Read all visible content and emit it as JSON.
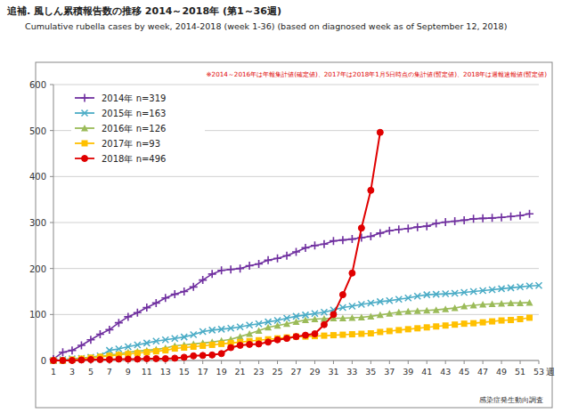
{
  "chart_data": {
    "type": "line",
    "title": "追補. 風しん累積報告数の推移  2014～2018年 (第1～36週)",
    "subtitle": "Cumulative rubella cases by week, 2014-2018 (week 1-36)  (based on diagnosed week as of September 12, 2018)",
    "x_label": "週",
    "annotations": [
      "※2014～2016年は年報集計値(確定値)、2017年は2018年1月5日時点の集計値(暫定値)、2018年は週報速報値(暫定値)",
      "感染症発生動向調査"
    ],
    "x": [
      1,
      2,
      3,
      4,
      5,
      6,
      7,
      8,
      9,
      10,
      11,
      12,
      13,
      14,
      15,
      16,
      17,
      18,
      19,
      20,
      21,
      22,
      23,
      24,
      25,
      26,
      27,
      28,
      29,
      30,
      31,
      32,
      33,
      34,
      35,
      36,
      37,
      38,
      39,
      40,
      41,
      42,
      43,
      44,
      45,
      46,
      47,
      48,
      49,
      50,
      51,
      52,
      53
    ],
    "xlim": [
      1,
      53
    ],
    "xticks": [
      1,
      3,
      5,
      7,
      9,
      11,
      13,
      15,
      17,
      19,
      21,
      23,
      25,
      27,
      29,
      31,
      33,
      35,
      37,
      39,
      41,
      43,
      45,
      47,
      49,
      51,
      53
    ],
    "ylim": [
      0,
      600
    ],
    "yticks": [
      0,
      100,
      200,
      300,
      400,
      500,
      600
    ],
    "grid": true,
    "legend": "upper left",
    "series": [
      {
        "name": "2014年 n=319",
        "color": "#7030a0",
        "marker": "plus",
        "values": [
          3,
          18,
          22,
          33,
          45,
          57,
          67,
          82,
          95,
          104,
          115,
          125,
          136,
          144,
          150,
          160,
          175,
          188,
          196,
          198,
          200,
          206,
          210,
          218,
          222,
          228,
          236,
          245,
          250,
          253,
          260,
          262,
          264,
          267,
          270,
          277,
          282,
          285,
          287,
          290,
          292,
          298,
          301,
          303,
          305,
          308,
          309,
          310,
          311,
          313,
          315,
          319,
          null
        ]
      },
      {
        "name": "2015年 n=163",
        "color": "#4bacc6",
        "marker": "x",
        "values": [
          0,
          2,
          4,
          5,
          7,
          10,
          22,
          25,
          30,
          34,
          38,
          42,
          45,
          48,
          51,
          56,
          63,
          66,
          68,
          70,
          73,
          77,
          80,
          84,
          87,
          92,
          96,
          99,
          102,
          105,
          110,
          115,
          118,
          122,
          125,
          128,
          130,
          133,
          136,
          140,
          143,
          144,
          145,
          146,
          148,
          150,
          152,
          154,
          156,
          158,
          160,
          162,
          163
        ]
      },
      {
        "name": "2016年 n=126",
        "color": "#9bbb59",
        "marker": "triangle",
        "values": [
          0,
          0,
          2,
          4,
          6,
          8,
          12,
          14,
          18,
          20,
          22,
          24,
          27,
          32,
          34,
          36,
          38,
          40,
          43,
          46,
          52,
          58,
          65,
          72,
          76,
          80,
          84,
          88,
          90,
          91,
          92,
          92,
          93,
          94,
          96,
          99,
          102,
          105,
          107,
          108,
          109,
          110,
          112,
          114,
          118,
          120,
          122,
          123,
          124,
          125,
          125,
          126,
          null
        ]
      },
      {
        "name": "2017年 n=93",
        "color": "#ffc000",
        "marker": "square",
        "values": [
          0,
          0,
          2,
          4,
          6,
          8,
          10,
          12,
          14,
          16,
          18,
          20,
          22,
          26,
          28,
          30,
          32,
          34,
          36,
          38,
          40,
          42,
          44,
          46,
          48,
          50,
          52,
          52,
          53,
          54,
          55,
          56,
          57,
          58,
          59,
          62,
          64,
          66,
          68,
          70,
          72,
          74,
          76,
          78,
          80,
          81,
          83,
          85,
          87,
          88,
          90,
          93,
          null
        ]
      },
      {
        "name": "2018年 n=496",
        "color": "#e00000",
        "marker": "circle",
        "values": [
          0,
          0,
          0,
          1,
          2,
          2,
          2,
          3,
          3,
          3,
          4,
          4,
          4,
          5,
          7,
          10,
          11,
          12,
          15,
          28,
          33,
          35,
          36,
          40,
          45,
          48,
          52,
          55,
          58,
          78,
          100,
          143,
          190,
          288,
          370,
          496,
          null,
          null,
          null,
          null,
          null,
          null,
          null,
          null,
          null,
          null,
          null,
          null,
          null,
          null,
          null,
          null,
          null
        ]
      }
    ]
  }
}
